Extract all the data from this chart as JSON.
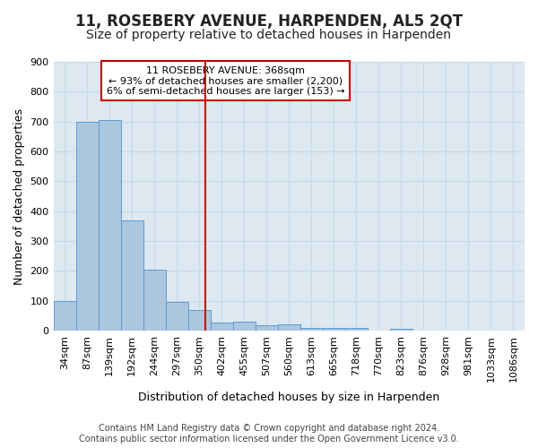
{
  "title": "11, ROSEBERY AVENUE, HARPENDEN, AL5 2QT",
  "subtitle": "Size of property relative to detached houses in Harpenden",
  "xlabel": "Distribution of detached houses by size in Harpenden",
  "ylabel": "Number of detached properties",
  "categories": [
    "34sqm",
    "87sqm",
    "139sqm",
    "192sqm",
    "244sqm",
    "297sqm",
    "350sqm",
    "402sqm",
    "455sqm",
    "507sqm",
    "560sqm",
    "613sqm",
    "665sqm",
    "718sqm",
    "770sqm",
    "823sqm",
    "876sqm",
    "928sqm",
    "981sqm",
    "1033sqm",
    "1086sqm"
  ],
  "values": [
    100,
    700,
    705,
    370,
    205,
    95,
    70,
    28,
    30,
    18,
    20,
    10,
    8,
    8,
    0,
    5,
    0,
    0,
    0,
    0,
    0
  ],
  "bar_color": "#adc6e0",
  "bar_edge_color": "#5b9bd5",
  "grid_color": "#c8d8e8",
  "background_color": "#dde8f0",
  "ylim": [
    0,
    900
  ],
  "yticks": [
    0,
    100,
    200,
    300,
    400,
    500,
    600,
    700,
    800,
    900
  ],
  "vline_x": 6.27,
  "vline_color": "#cc0000",
  "annotation_line1": "11 ROSEBERY AVENUE: 368sqm",
  "annotation_line2": "← 93% of detached houses are smaller (2,200)",
  "annotation_line3": "6% of semi-detached houses are larger (153) →",
  "annotation_box_color": "#cc0000",
  "footer_text": "Contains HM Land Registry data © Crown copyright and database right 2024.\nContains public sector information licensed under the Open Government Licence v3.0.",
  "title_fontsize": 12,
  "subtitle_fontsize": 10,
  "xlabel_fontsize": 9,
  "ylabel_fontsize": 9,
  "tick_fontsize": 8,
  "annotation_fontsize": 8,
  "footer_fontsize": 7
}
